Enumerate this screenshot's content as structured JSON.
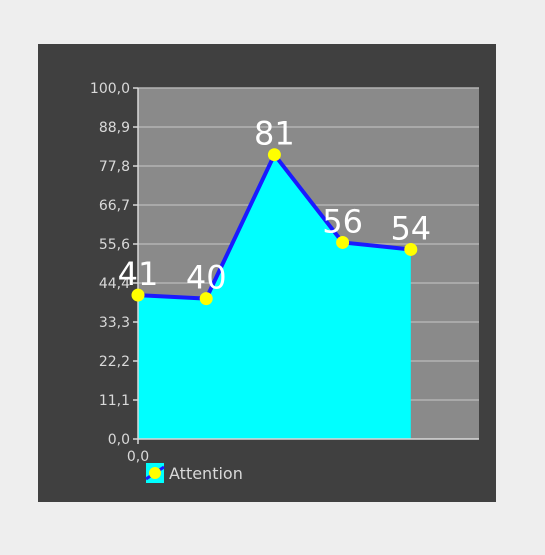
{
  "chart_data": {
    "type": "area",
    "title": "",
    "xlabel": "",
    "ylabel": "",
    "ylim": [
      0,
      100
    ],
    "yticks": [
      "0,0",
      "11,1",
      "22,2",
      "33,3",
      "44,4",
      "55,6",
      "66,7",
      "77,8",
      "88,9",
      "100,0"
    ],
    "xticks": [
      "0,0"
    ],
    "x": [
      0,
      1,
      2,
      3,
      4
    ],
    "xlim": [
      0,
      5
    ],
    "series": [
      {
        "name": "Attention",
        "values": [
          41,
          40,
          81,
          56,
          54
        ],
        "labels": [
          "41",
          "40",
          "81",
          "56",
          "54"
        ]
      }
    ],
    "legend": "bottom-left",
    "grid": true
  },
  "colors": {
    "card_bg": "#404040",
    "plot_bg": "#8a8a8a",
    "grid": "#b3b3b3",
    "area_fill": "#00ffff",
    "line": "#1a1aff",
    "point": "#ffff00",
    "axis": "#d9d9d9",
    "data_label": "#ffffff",
    "tick_label": "#d9d9d9"
  }
}
